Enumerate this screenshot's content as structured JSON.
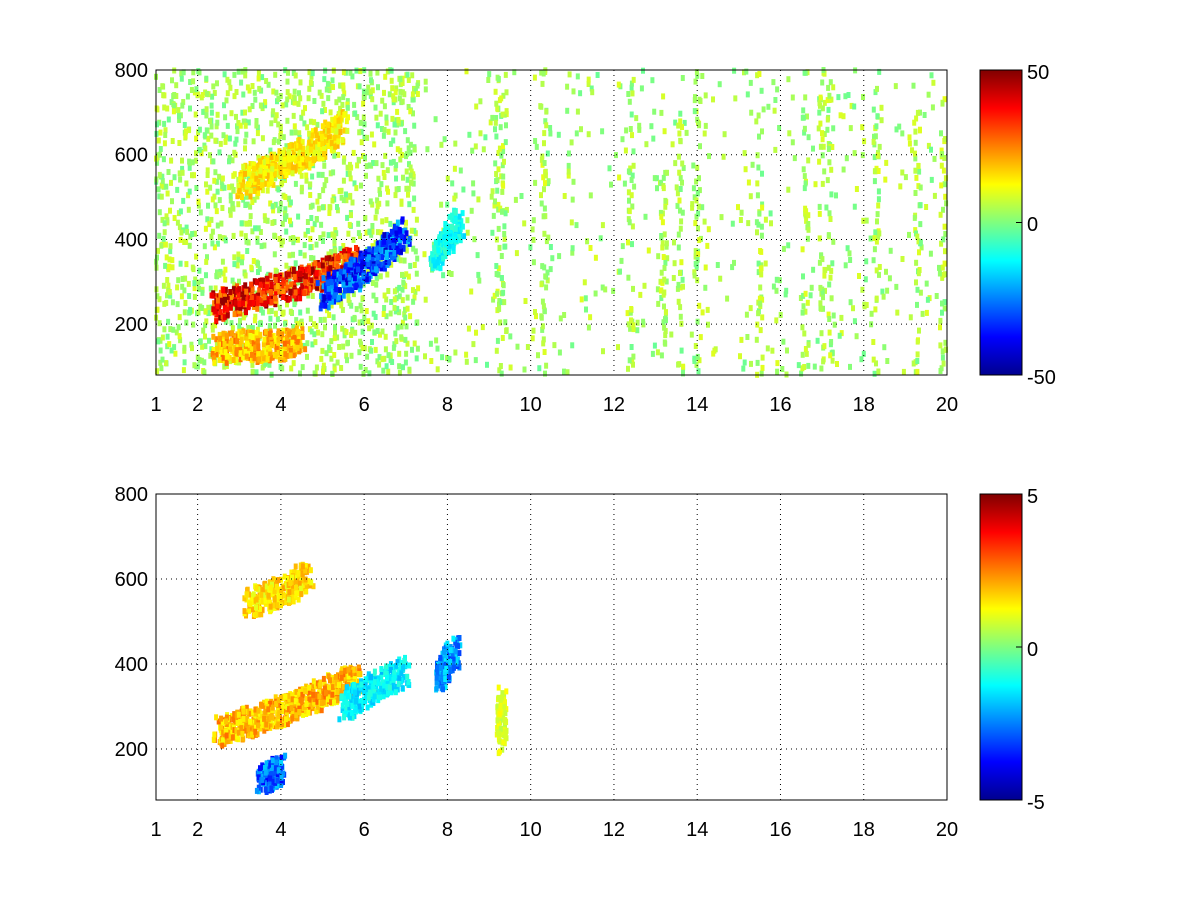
{
  "figure": {
    "background": "#ffffff",
    "colormap": "jet"
  },
  "chart_data": [
    {
      "type": "heatmap",
      "title": "",
      "xlabel": "",
      "ylabel": "",
      "xlim": [
        1,
        20
      ],
      "ylim": [
        80,
        800
      ],
      "xticks": [
        1,
        2,
        4,
        6,
        8,
        10,
        12,
        14,
        16,
        18,
        20
      ],
      "yticks": [
        200,
        400,
        600,
        800
      ],
      "xtick_labels": [
        "1",
        "2",
        "4",
        "6",
        "8",
        "10",
        "12",
        "14",
        "16",
        "18",
        "20"
      ],
      "ytick_labels": [
        "200",
        "400",
        "600",
        "800"
      ],
      "grid": true,
      "colorbar": {
        "range": [
          -50,
          50
        ],
        "tick_labels": [
          "50",
          "0",
          "-50"
        ]
      },
      "ridges": [
        {
          "x": [
            2.4,
            3.0,
            3.6,
            4.2,
            4.8,
            5.4,
            5.8
          ],
          "y": [
            240,
            260,
            275,
            290,
            310,
            330,
            350
          ],
          "peak": 45
        },
        {
          "x": [
            3.0,
            3.5,
            4.0,
            4.5,
            5.0,
            5.5
          ],
          "y": [
            530,
            550,
            575,
            600,
            630,
            670
          ],
          "peak": 18
        },
        {
          "x": [
            2.4,
            3.0,
            3.5,
            4.0,
            4.5
          ],
          "y": [
            140,
            150,
            145,
            150,
            160
          ],
          "peak": 25
        },
        {
          "x": [
            5.0,
            5.5,
            6.0,
            6.5,
            7.0
          ],
          "y": [
            270,
            300,
            330,
            370,
            420
          ],
          "peak": -40
        },
        {
          "x": [
            7.7,
            8.0,
            8.3
          ],
          "y": [
            355,
            400,
            440
          ],
          "peak": -15
        }
      ],
      "noise_level": 6,
      "noise_columns": [
        9.2,
        9.35,
        10.3,
        12.4,
        13.2,
        13.6,
        14.0,
        15.5,
        16.6,
        17.0,
        17.2,
        18.3,
        19.3,
        19.9
      ]
    },
    {
      "type": "heatmap",
      "title": "",
      "xlabel": "",
      "ylabel": "",
      "xlim": [
        1,
        20
      ],
      "ylim": [
        80,
        800
      ],
      "xticks": [
        1,
        2,
        4,
        6,
        8,
        10,
        12,
        14,
        16,
        18,
        20
      ],
      "yticks": [
        200,
        400,
        600,
        800
      ],
      "xtick_labels": [
        "1",
        "2",
        "4",
        "6",
        "8",
        "10",
        "12",
        "14",
        "16",
        "18",
        "20"
      ],
      "ytick_labels": [
        "200",
        "400",
        "600",
        "800"
      ],
      "grid": true,
      "colorbar": {
        "range": [
          -5,
          5
        ],
        "tick_labels": [
          "5",
          "0",
          "-5"
        ]
      },
      "ridges": [
        {
          "x": [
            2.5,
            3.0,
            3.5,
            4.0,
            4.5,
            5.0,
            5.5,
            5.9
          ],
          "y": [
            240,
            255,
            270,
            290,
            310,
            330,
            350,
            370
          ],
          "peak": 2.5
        },
        {
          "x": [
            3.2,
            3.7,
            4.2,
            4.7
          ],
          "y": [
            540,
            555,
            580,
            610
          ],
          "peak": 2
        },
        {
          "x": [
            3.5,
            3.8,
            4.0
          ],
          "y": [
            130,
            140,
            150
          ],
          "peak": -3.5
        },
        {
          "x": [
            5.5,
            6.0,
            6.5,
            7.0
          ],
          "y": [
            300,
            330,
            360,
            380
          ],
          "peak": -1.8
        },
        {
          "x": [
            7.8,
            8.0,
            8.2
          ],
          "y": [
            370,
            400,
            430
          ],
          "peak": -3
        },
        {
          "x": [
            9.3,
            9.3
          ],
          "y": [
            220,
            330
          ],
          "peak": 1.2
        }
      ],
      "noise_level": 0,
      "noise_columns": []
    }
  ]
}
